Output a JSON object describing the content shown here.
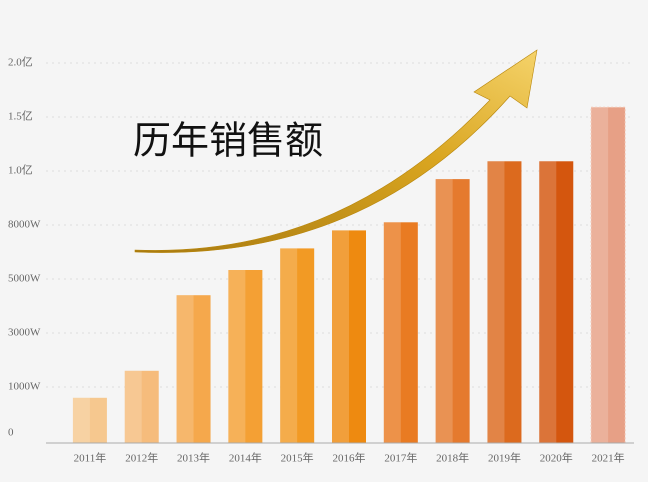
{
  "chart_data": {
    "type": "bar",
    "annotation": "历年销售额",
    "categories": [
      "2011年",
      "2012年",
      "2013年",
      "2014年",
      "2015年",
      "2016年",
      "2017年",
      "2018年",
      "2019年",
      "2020年",
      "2021年"
    ],
    "values": [
      800,
      1600,
      4400,
      5500,
      6700,
      7700,
      8100,
      9700,
      10900,
      10900,
      15900
    ],
    "colors": [
      "#f6c88f",
      "#f6bc7c",
      "#f5a84c",
      "#f4a034",
      "#f29a24",
      "#ee8a10",
      "#e97b22",
      "#e57a2e",
      "#dc6a1e",
      "#d4560e",
      "#e7a086"
    ],
    "ylim": [
      0,
      20000
    ],
    "yticks": [
      0,
      {
        "value": 1000,
        "label": "1000W"
      },
      {
        "value": 3000,
        "label": "3000W"
      },
      {
        "value": 5000,
        "label": "5000W"
      },
      {
        "value": 8000,
        "label": "8000W"
      },
      {
        "value": 10000,
        "label": "1.0亿"
      },
      {
        "value": 15000,
        "label": "1.5亿"
      },
      {
        "value": 20000,
        "label": "2.0亿"
      }
    ],
    "grid": true
  }
}
